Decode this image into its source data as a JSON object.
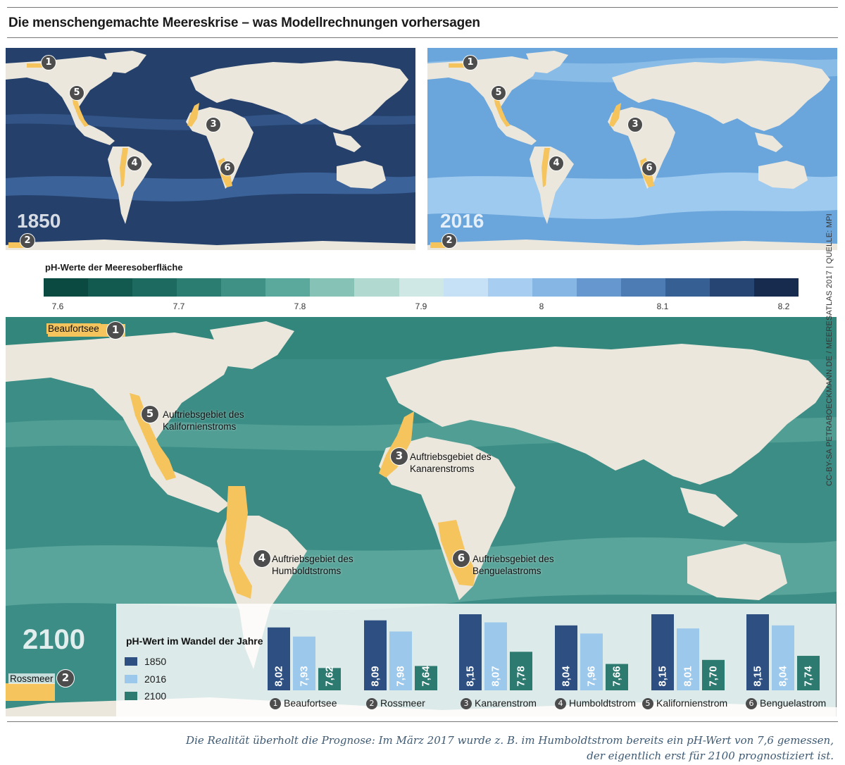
{
  "title": "Die menschengemachte Meereskrise – was Modellrechnungen vorhersagen",
  "maps": {
    "left": {
      "year": "1850",
      "ocean_color": "#24406b",
      "band_color": "#3c6399"
    },
    "right": {
      "year": "2016",
      "ocean_color": "#6aa6dc",
      "band_color": "#9fcaef"
    },
    "bottom": {
      "year": "2100",
      "ocean_color": "#3c8d85",
      "band_color": "#5aa59b"
    }
  },
  "land_color": "#ebe7dd",
  "upwelling_color": "#f6c45c",
  "marker_numbers": [
    "1",
    "2",
    "3",
    "4",
    "5",
    "6"
  ],
  "map_labels": {
    "beaufort": "Beaufortsee",
    "ross": "Rossmeer",
    "m5": [
      "Auftriebsgebiet des",
      "Kalifornienstroms"
    ],
    "m3": [
      "Auftriebsgebiet des",
      "Kanarenstroms"
    ],
    "m4": [
      "Auftriebsgebiet des",
      "Humboldtstroms"
    ],
    "m6": [
      "Auftriebsgebiet des",
      "Benguelastroms"
    ]
  },
  "legend": {
    "title": "pH-Werte der Meeresoberfläche",
    "ticks": [
      "7.6",
      "7.7",
      "7.8",
      "7.9",
      "8",
      "8.1",
      "8.2"
    ],
    "colors": [
      "#0b4a40",
      "#12594f",
      "#1d6b60",
      "#2b7d71",
      "#3f9186",
      "#5aa99c",
      "#86c2b6",
      "#b1d9cf",
      "#cfe8e6",
      "#c6e0f6",
      "#a7cdf0",
      "#86b7e4",
      "#6698cf",
      "#4d7cb5",
      "#365f93",
      "#264572",
      "#172b4f"
    ]
  },
  "credit": "CC-BY-SA PETRABOECKMANN.DE / MEERESATLAS 2017 | QUELLE: MPI",
  "chart_data": {
    "type": "bar",
    "title": "pH-Wert im Wandel der Jahre",
    "categories": [
      "Beaufortsee",
      "Rossmeer",
      "Kanarenstrom",
      "Humboldtstrom",
      "Kalifornienstrom",
      "Benguelastrom"
    ],
    "series": [
      {
        "name": "1850",
        "color": "#2e4f82",
        "values": [
          8.02,
          8.09,
          8.15,
          8.04,
          8.15,
          8.15
        ],
        "labels": [
          "8,02",
          "8,09",
          "8,15",
          "8,04",
          "8,15",
          "8,15"
        ]
      },
      {
        "name": "2016",
        "color": "#9cc8ec",
        "values": [
          7.93,
          7.98,
          8.07,
          7.96,
          8.01,
          8.04
        ],
        "labels": [
          "7,93",
          "7,98",
          "8,07",
          "7,96",
          "8,01",
          "8,04"
        ]
      },
      {
        "name": "2100",
        "color": "#2d7a70",
        "values": [
          7.62,
          7.64,
          7.78,
          7.66,
          7.7,
          7.74
        ],
        "labels": [
          "7,62",
          "7,64",
          "7,78",
          "7,66",
          "7,70",
          "7,74"
        ]
      }
    ]
  },
  "caption": [
    "Die Realität überholt die Prognose: Im März 2017 wurde z. B. im Humboldtstrom bereits ein pH-Wert von 7,6 gemessen,",
    "der eigentlich erst für 2100 prognostiziert ist."
  ]
}
